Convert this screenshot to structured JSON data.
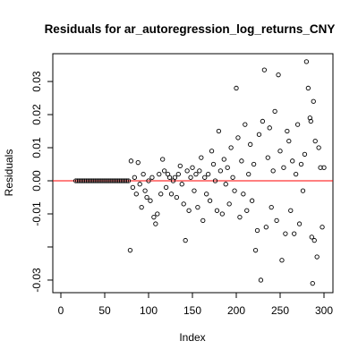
{
  "chart_data": {
    "type": "scatter",
    "title": "Residuals for ar_autoregression_log_returns_CNY",
    "x_label": "Index",
    "y_label": "Residuals",
    "xlim": [
      -9.2,
      310.2
    ],
    "ylim": [
      -0.0338,
      0.0384
    ],
    "xticks": [
      0,
      50,
      100,
      150,
      200,
      250,
      300
    ],
    "yticks": [
      {
        "value": -0.03,
        "label": "-0.03"
      },
      {
        "value": -0.02,
        "label": null
      },
      {
        "value": -0.01,
        "label": "-0.01"
      },
      {
        "value": 0,
        "label": "0.00"
      },
      {
        "value": 0.01,
        "label": "0.01"
      },
      {
        "value": 0.02,
        "label": "0.02"
      },
      {
        "value": 0.03,
        "label": "0.03"
      }
    ],
    "reference_line": {
      "value": 0,
      "color": "#ff0000"
    },
    "series": [
      {
        "name": "residuals",
        "color": "#000000",
        "x": [
          17,
          19,
          21,
          23,
          25,
          27,
          29,
          31,
          33,
          35,
          37,
          39,
          41,
          43,
          45,
          47,
          49,
          51,
          53,
          55,
          57,
          59,
          61,
          63,
          65,
          67,
          69,
          71,
          73,
          75,
          77,
          79,
          80,
          82,
          84,
          86,
          88,
          90,
          92,
          94,
          96,
          98,
          100,
          102,
          104,
          106,
          108,
          110,
          112,
          114,
          116,
          118,
          120,
          122,
          124,
          126,
          128,
          130,
          132,
          134,
          136,
          138,
          140,
          142,
          144,
          146,
          148,
          150,
          152,
          154,
          156,
          158,
          160,
          162,
          164,
          166,
          168,
          170,
          172,
          174,
          176,
          178,
          180,
          182,
          184,
          186,
          188,
          190,
          192,
          194,
          196,
          198,
          200,
          202,
          204,
          206,
          208,
          210,
          212,
          214,
          216,
          218,
          220,
          222,
          224,
          226,
          228,
          230,
          232,
          234,
          236,
          238,
          240,
          242,
          244,
          246,
          248,
          250,
          252,
          254,
          256,
          258,
          260,
          262,
          264,
          266,
          268,
          270,
          272,
          274,
          276,
          278,
          280,
          282,
          284,
          285,
          286,
          287,
          288,
          289,
          290,
          292,
          294,
          296,
          298,
          300
        ],
        "values": [
          0,
          0,
          0,
          0,
          0,
          0,
          0,
          0,
          0,
          0,
          0,
          0,
          0,
          0,
          0,
          0,
          0,
          0,
          0,
          0,
          0,
          0,
          0,
          0,
          0,
          0,
          0,
          0,
          0,
          0,
          0,
          -0.021,
          0.006,
          -0.002,
          0.001,
          -0.004,
          0.0055,
          -0.001,
          -0.008,
          0.002,
          -0.003,
          -0.005,
          0.0,
          -0.006,
          0.001,
          -0.011,
          -0.013,
          -0.01,
          0.002,
          -0.004,
          0.0065,
          0.003,
          -0.002,
          0.002,
          0.001,
          -0.004,
          0.0,
          0.001,
          -0.005,
          0.002,
          0.0045,
          -0.001,
          -0.007,
          -0.018,
          0.003,
          -0.009,
          0.001,
          0.004,
          -0.003,
          0.002,
          -0.008,
          0.003,
          0.007,
          -0.012,
          0.001,
          -0.004,
          0.002,
          -0.006,
          0.009,
          0.005,
          0.0,
          -0.009,
          0.015,
          0.003,
          -0.01,
          0.0065,
          -0.001,
          0.004,
          -0.007,
          0.01,
          0.001,
          -0.003,
          0.028,
          0.013,
          -0.011,
          0.006,
          -0.004,
          0.017,
          -0.009,
          0.002,
          0.011,
          -0.006,
          0.005,
          -0.021,
          -0.015,
          0.014,
          -0.03,
          0.018,
          0.0335,
          -0.014,
          0.007,
          0.016,
          -0.008,
          0.003,
          0.021,
          -0.012,
          0.032,
          0.009,
          -0.024,
          0.004,
          -0.016,
          0.015,
          0.012,
          -0.009,
          0.006,
          -0.016,
          0.002,
          0.017,
          -0.013,
          0.005,
          -0.003,
          0.008,
          0.036,
          0.028,
          0.019,
          0.018,
          -0.017,
          -0.031,
          0.024,
          -0.018,
          0.012,
          -0.023,
          0.01,
          0.004,
          -0.014,
          0.004
        ]
      }
    ]
  }
}
